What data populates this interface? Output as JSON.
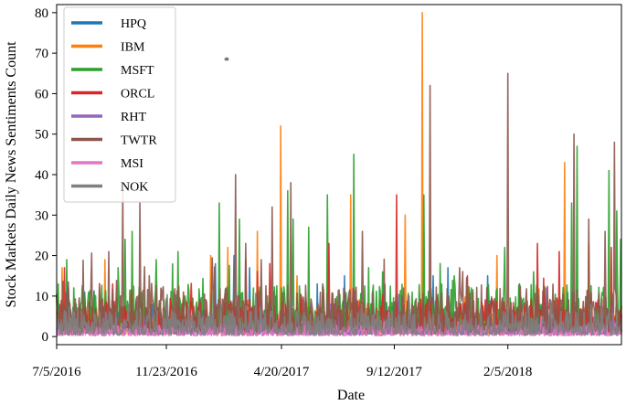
{
  "chart_data": {
    "type": "line",
    "xlabel": "Date",
    "ylabel": "Stock Markets Daily News Sentiments Count",
    "x_range": [
      "7/5/2016",
      "7/1/2018"
    ],
    "ylim": [
      -2,
      82
    ],
    "x_ticks": [
      "7/5/2016",
      "11/23/2016",
      "4/20/2017",
      "9/12/2017",
      "2/5/2018"
    ],
    "y_ticks": [
      0,
      10,
      20,
      30,
      40,
      50,
      60,
      70,
      80
    ],
    "grid": false,
    "legend_position": "top-left",
    "series": [
      {
        "name": "HPQ",
        "color": "#1f77b4",
        "points": [
          [
            "7/20/2016",
            12
          ],
          [
            "8/10/2016",
            11
          ],
          [
            "11/5/2016",
            8
          ],
          [
            "1/25/2017",
            18
          ],
          [
            "2/18/2017",
            20
          ],
          [
            "3/10/2017",
            17
          ],
          [
            "5/15/2017",
            10
          ],
          [
            "6/5/2017",
            13
          ],
          [
            "7/10/2017",
            15
          ],
          [
            "8/25/2017",
            9
          ],
          [
            "11/1/2017",
            15
          ],
          [
            "11/20/2017",
            17
          ],
          [
            "1/10/2018",
            15
          ],
          [
            "2/20/2018",
            13
          ]
        ]
      },
      {
        "name": "IBM",
        "color": "#ff7f0e",
        "points": [
          [
            "7/12/2016",
            17
          ],
          [
            "9/5/2016",
            19
          ],
          [
            "1/19/2017",
            20
          ],
          [
            "2/10/2017",
            22
          ],
          [
            "3/20/2017",
            26
          ],
          [
            "4/19/2017",
            52
          ],
          [
            "5/10/2017",
            15
          ],
          [
            "7/18/2017",
            35
          ],
          [
            "9/26/2017",
            30
          ],
          [
            "10/18/2017",
            80
          ],
          [
            "1/22/2018",
            20
          ],
          [
            "4/19/2018",
            43
          ],
          [
            "5/20/2018",
            23
          ]
        ]
      },
      {
        "name": "MSFT",
        "color": "#2ca02c",
        "points": [
          [
            "7/7/2016",
            13
          ],
          [
            "7/18/2016",
            19
          ],
          [
            "8/22/2016",
            11
          ],
          [
            "9/22/2016",
            17
          ],
          [
            "10/1/2016",
            24
          ],
          [
            "10/10/2016",
            26
          ],
          [
            "11/10/2016",
            19
          ],
          [
            "12/8/2016",
            21
          ],
          [
            "1/30/2017",
            33
          ],
          [
            "2/25/2017",
            29
          ],
          [
            "3/15/2017",
            12
          ],
          [
            "4/28/2017",
            36
          ],
          [
            "5/5/2017",
            29
          ],
          [
            "5/25/2017",
            27
          ],
          [
            "6/18/2017",
            35
          ],
          [
            "7/22/2017",
            45
          ],
          [
            "8/10/2017",
            17
          ],
          [
            "8/28/2017",
            16
          ],
          [
            "10/5/2017",
            11
          ],
          [
            "10/20/2017",
            35
          ],
          [
            "11/28/2017",
            15
          ],
          [
            "12/20/2017",
            12
          ],
          [
            "2/1/2018",
            22
          ],
          [
            "3/10/2018",
            16
          ],
          [
            "4/28/2018",
            33
          ],
          [
            "5/5/2018",
            47
          ],
          [
            "6/15/2018",
            41
          ],
          [
            "6/25/2018",
            31
          ],
          [
            "6/30/2018",
            24
          ]
        ]
      },
      {
        "name": "ORCL",
        "color": "#d62728",
        "points": [
          [
            "7/15/2016",
            17
          ],
          [
            "9/15/2016",
            13
          ],
          [
            "12/15/2016",
            11
          ],
          [
            "3/5/2017",
            19
          ],
          [
            "4/5/2017",
            18
          ],
          [
            "6/20/2017",
            23
          ],
          [
            "9/15/2017",
            35
          ],
          [
            "12/15/2017",
            15
          ],
          [
            "3/15/2018",
            23
          ],
          [
            "4/12/2018",
            21
          ],
          [
            "6/18/2018",
            22
          ]
        ]
      },
      {
        "name": "RHT",
        "color": "#9467bd",
        "points": [
          [
            "9/20/2016",
            5
          ],
          [
            "12/20/2016",
            7
          ],
          [
            "3/25/2017",
            9
          ],
          [
            "6/22/2017",
            8
          ],
          [
            "9/18/2017",
            10
          ],
          [
            "12/18/2017",
            9
          ],
          [
            "3/26/2018",
            12
          ],
          [
            "6/20/2018",
            8
          ]
        ]
      },
      {
        "name": "TWTR",
        "color": "#8c564b",
        "points": [
          [
            "9/10/2016",
            21
          ],
          [
            "9/28/2016",
            36
          ],
          [
            "10/20/2016",
            33
          ],
          [
            "11/1/2016",
            15
          ],
          [
            "2/20/2017",
            40
          ],
          [
            "3/5/2017",
            23
          ],
          [
            "3/25/2017",
            19
          ],
          [
            "4/8/2017",
            32
          ],
          [
            "5/2/2017",
            38
          ],
          [
            "6/12/2017",
            13
          ],
          [
            "8/2/2017",
            26
          ],
          [
            "10/28/2017",
            62
          ],
          [
            "12/5/2017",
            17
          ],
          [
            "2/5/2018",
            65
          ],
          [
            "5/1/2018",
            50
          ],
          [
            "5/20/2018",
            29
          ],
          [
            "6/10/2018",
            26
          ],
          [
            "6/22/2018",
            48
          ]
        ]
      },
      {
        "name": "MSI",
        "color": "#e377c2",
        "points": [
          [
            "10/15/2016",
            3
          ],
          [
            "2/10/2017",
            2
          ],
          [
            "5/20/2017",
            4
          ],
          [
            "9/5/2017",
            6
          ],
          [
            "12/10/2017",
            3
          ],
          [
            "3/20/2018",
            5
          ],
          [
            "6/12/2018",
            4
          ]
        ]
      },
      {
        "name": "NOK",
        "color": "#7f7f7f",
        "points": [
          [
            "8/1/2016",
            7
          ],
          [
            "11/1/2016",
            6
          ],
          [
            "2/1/2017",
            8
          ],
          [
            "5/1/2017",
            9
          ],
          [
            "8/1/2017",
            8
          ],
          [
            "10/1/2017",
            10
          ],
          [
            "1/1/2018",
            7
          ],
          [
            "4/1/2018",
            9
          ],
          [
            "6/5/2018",
            8
          ]
        ]
      }
    ],
    "annotation": "*"
  }
}
